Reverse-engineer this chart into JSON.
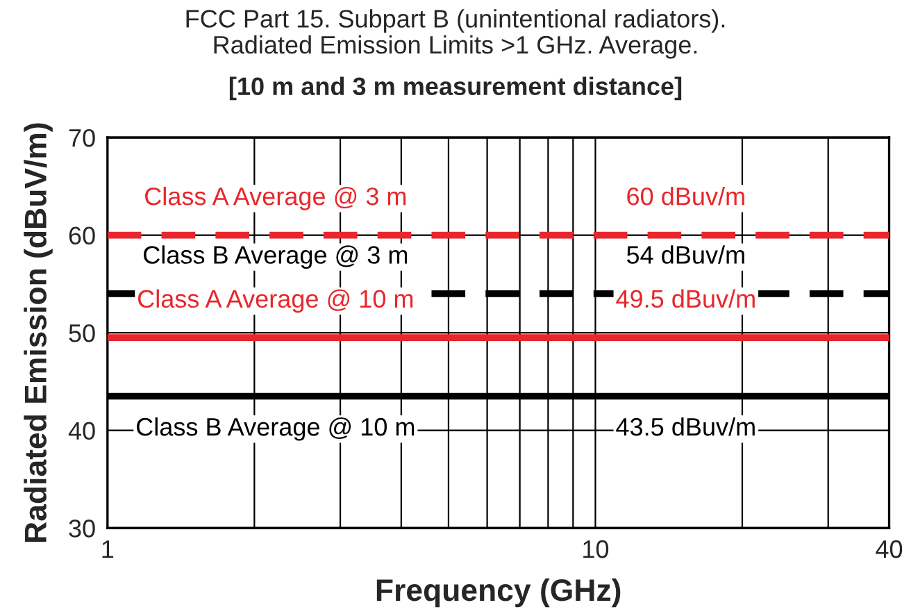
{
  "chart_data": {
    "type": "line",
    "title": "FCC Part 15. Subpart B (unintentional radiators).\nRadiated Emission Limits >1 GHz. Average.",
    "subtitle": "[10 m and 3 m measurement distance]",
    "xlabel": "Frequency (GHz)",
    "ylabel": "Radiated Emission (dBuV/m)",
    "x": [
      1,
      40
    ],
    "log": "x",
    "series": [
      {
        "color": "#e8262b",
        "line_style": "dashed",
        "values": [
          60,
          60
        ]
      },
      {
        "color": "#000000",
        "line_style": "dashed",
        "values": [
          54,
          54
        ]
      },
      {
        "color": "#e8262b",
        "line_style": "solid",
        "values": [
          49.5,
          49.5
        ]
      },
      {
        "color": "#000000",
        "line_style": "solid",
        "values": [
          43.5,
          43.5
        ]
      }
    ],
    "xlim": [
      1,
      40
    ],
    "xticks": [
      1,
      {
        "value": 2,
        "label": null
      },
      {
        "value": 3,
        "label": null
      },
      {
        "value": 4,
        "label": null
      },
      {
        "value": 5,
        "label": null
      },
      {
        "value": 6,
        "label": null
      },
      {
        "value": 7,
        "label": null
      },
      {
        "value": 8,
        "label": null
      },
      {
        "value": 9,
        "label": null
      },
      10,
      {
        "value": 20,
        "label": null
      },
      {
        "value": 30,
        "label": null
      },
      40
    ],
    "ylim": [
      30,
      70
    ],
    "yticks": [
      30,
      40,
      50,
      60,
      70
    ],
    "grid": true,
    "annotations": [
      "Class A Average @ 3 m",
      "60 dBuv/m",
      "Class B Average @ 3 m",
      "54 dBuv/m",
      "Class A Average @ 10 m",
      "49.5 dBuv/m",
      "Class B Average @ 10 m",
      "43.5 dBuv/m"
    ]
  }
}
